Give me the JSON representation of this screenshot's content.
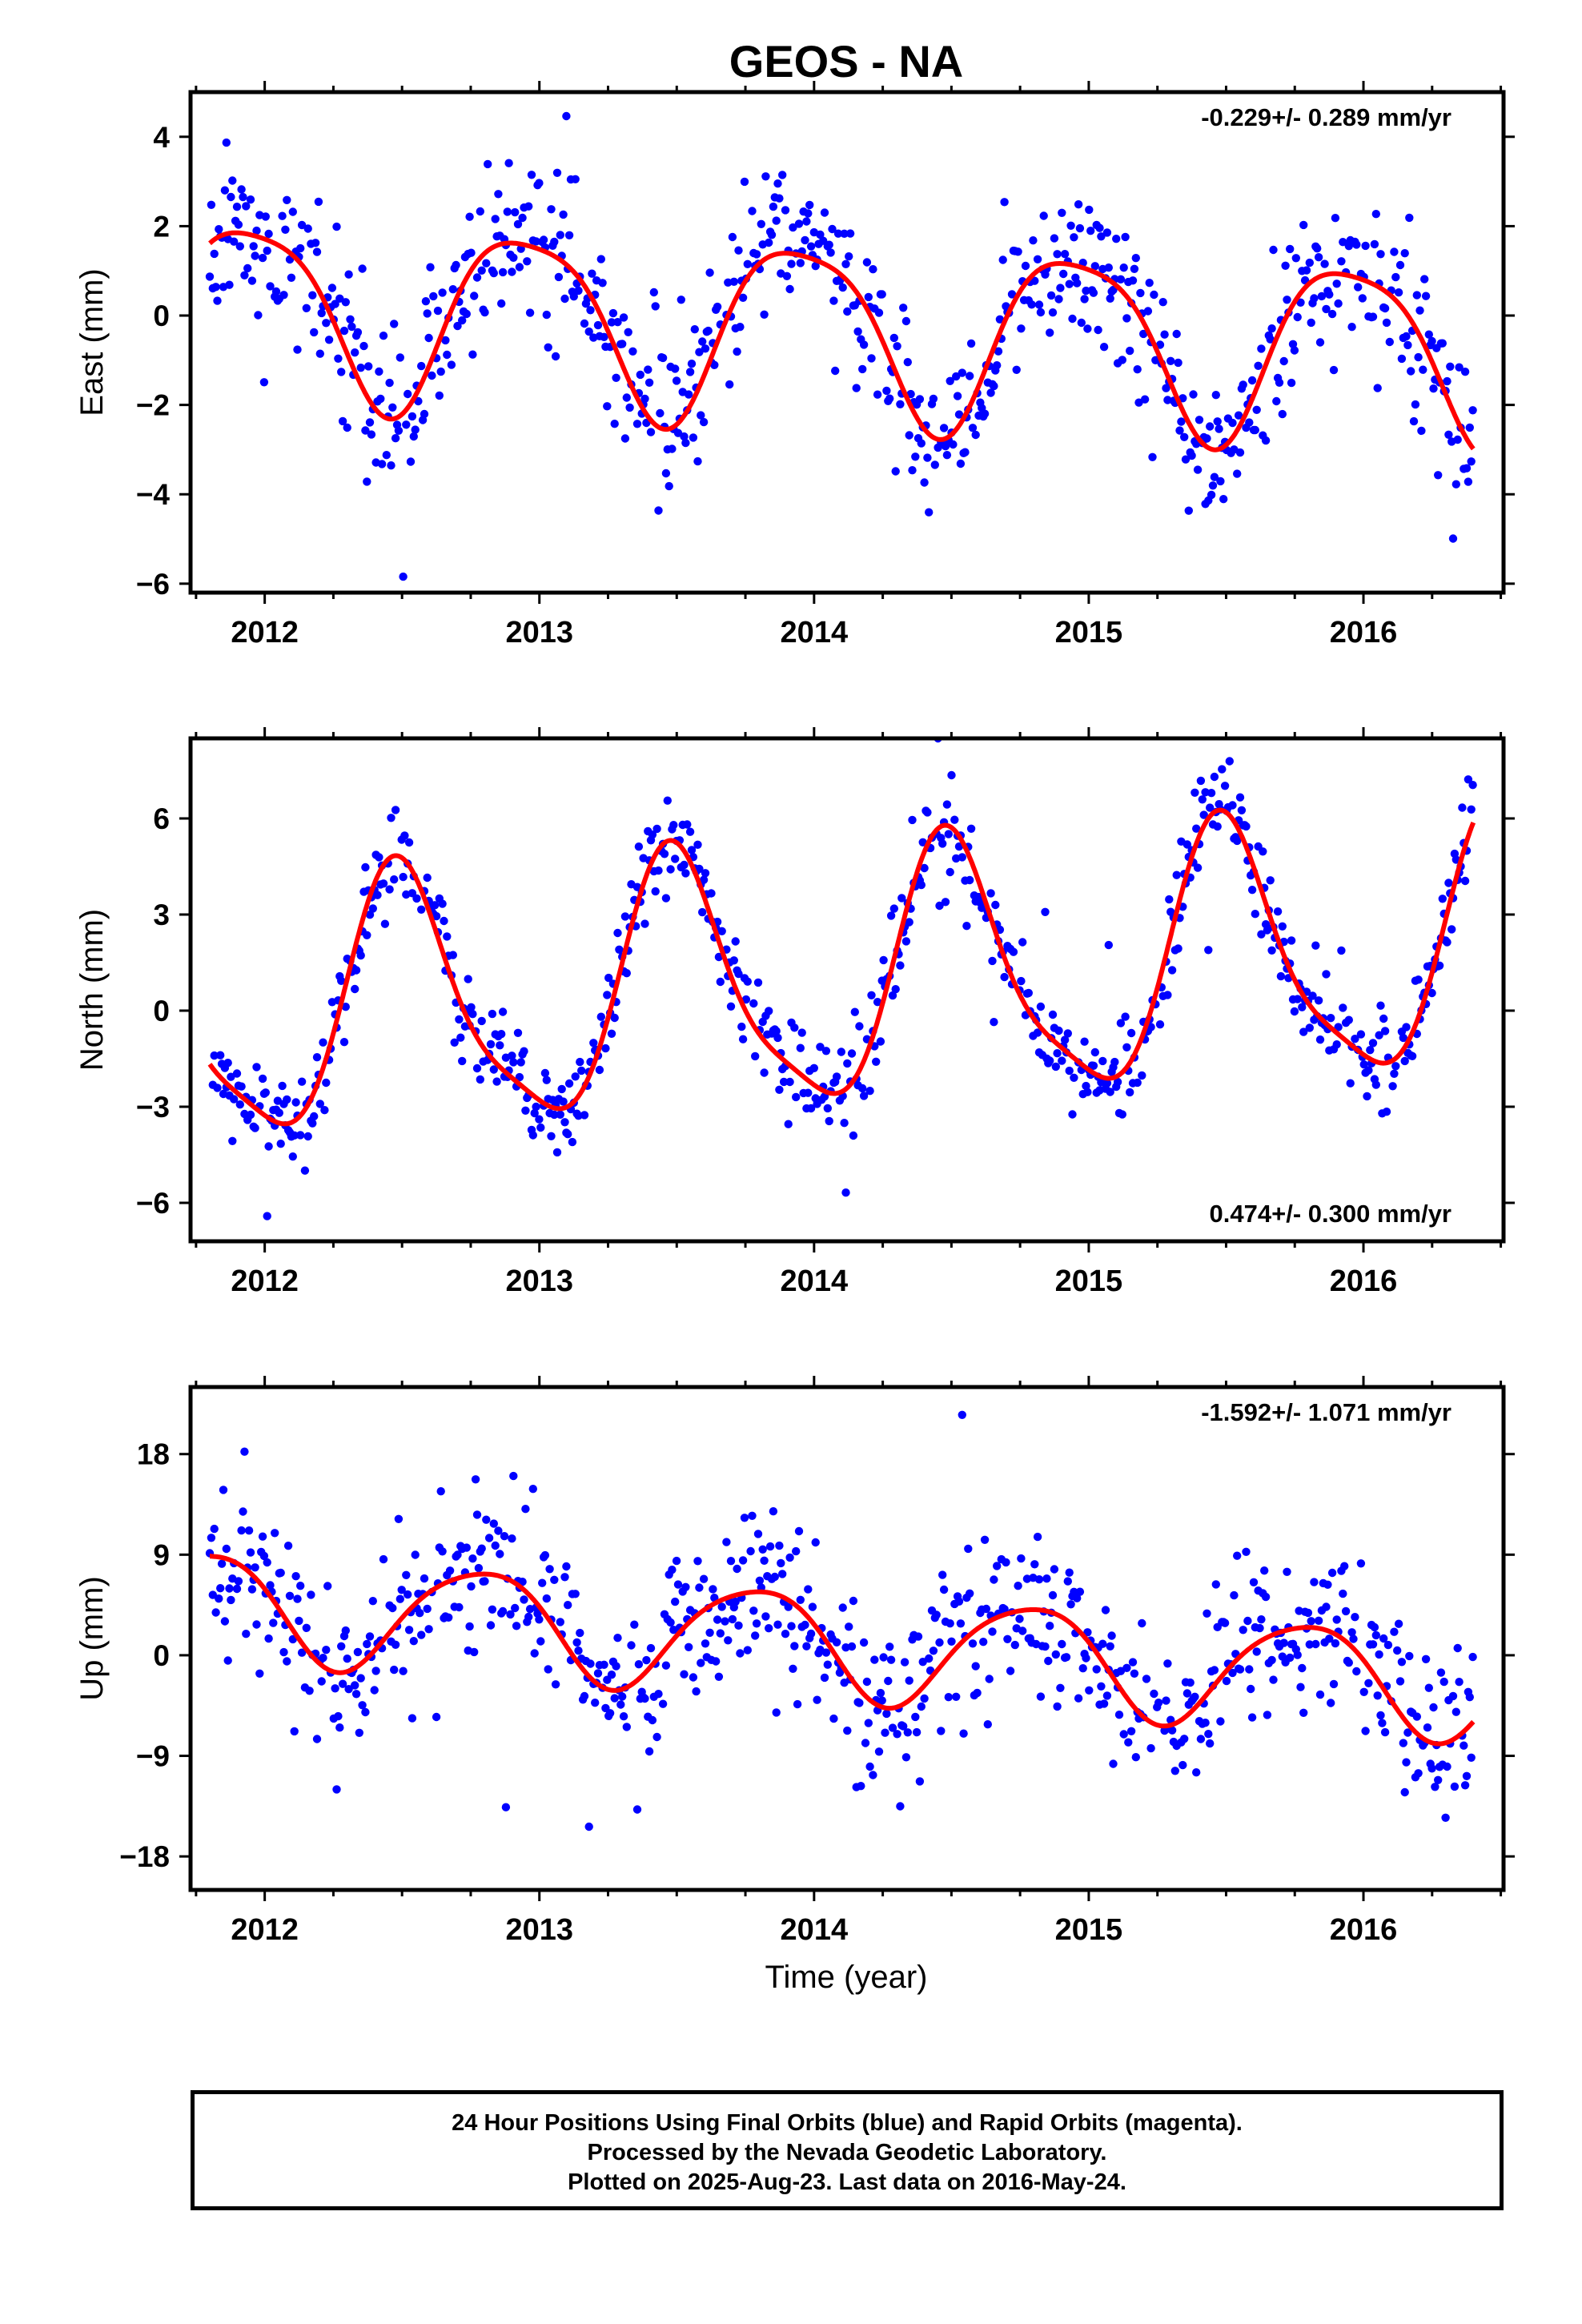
{
  "title": "GEOS - NA",
  "xlabel": "Time (year)",
  "footer": [
    "24 Hour Positions Using Final Orbits (blue) and Rapid Orbits (magenta).",
    "Processed by the Nevada Geodetic Laboratory.",
    "Plotted on 2025-Aug-23. Last data on 2016-May-24."
  ],
  "colors": {
    "points": "#0000ff",
    "model": "#ff0000",
    "frame": "#000000"
  },
  "chart_data": [
    {
      "type": "scatter",
      "ylabel": "East (mm)",
      "xlim": [
        2011.73,
        2016.51
      ],
      "ylim": [
        -6.2,
        5.0
      ],
      "xticks": [
        2012,
        2013,
        2014,
        2015,
        2016
      ],
      "yticks": [
        -6,
        -4,
        -2,
        0,
        2,
        4
      ],
      "rate_label": "-0.229+/- 0.289 mm/yr",
      "rate_position": "top-right",
      "model": {
        "mean": -0.3,
        "trend": -0.229,
        "annual_amp": 2.0,
        "annual_peak": 2011.95,
        "semiannual_amp": 0.4,
        "semiannual_peak": 2012.72,
        "x_start": 2011.8,
        "x_end": 2016.4
      },
      "scatter": {
        "seed": 11,
        "noise": 0.85,
        "interval": 0.0055
      }
    },
    {
      "type": "scatter",
      "ylabel": "North (mm)",
      "xlim": [
        2011.73,
        2016.51
      ],
      "ylim": [
        -7.2,
        8.5
      ],
      "xticks": [
        2012,
        2013,
        2014,
        2015,
        2016
      ],
      "yticks": [
        -6,
        -3,
        0,
        3,
        6
      ],
      "rate_label": "0.474+/- 0.300 mm/yr",
      "rate_position": "bottom-right",
      "model": {
        "mean": 0.9,
        "trend": 0.474,
        "annual_amp": 3.9,
        "annual_peak": 2012.5,
        "semiannual_amp": 0.9,
        "semiannual_peak": 2012.45,
        "x_start": 2011.8,
        "x_end": 2016.4
      },
      "scatter": {
        "seed": 23,
        "noise": 0.75,
        "interval": 0.0055
      }
    },
    {
      "type": "scatter",
      "ylabel": "Up (mm)",
      "xlim": [
        2011.73,
        2016.51
      ],
      "ylim": [
        -21.0,
        24.0
      ],
      "xticks": [
        2012,
        2013,
        2014,
        2015,
        2016
      ],
      "yticks": [
        -18,
        -9,
        0,
        9,
        18
      ],
      "rate_label": "-1.592+/- 1.071 mm/yr",
      "rate_position": "top-right",
      "model": {
        "mean": 1.0,
        "trend": -1.592,
        "annual_amp": 4.8,
        "annual_peak": 2012.78,
        "semiannual_amp": 0.7,
        "semiannual_peak": 2012.0,
        "x_start": 2011.8,
        "x_end": 2016.4
      },
      "scatter": {
        "seed": 37,
        "noise": 3.6,
        "interval": 0.0055
      }
    }
  ]
}
